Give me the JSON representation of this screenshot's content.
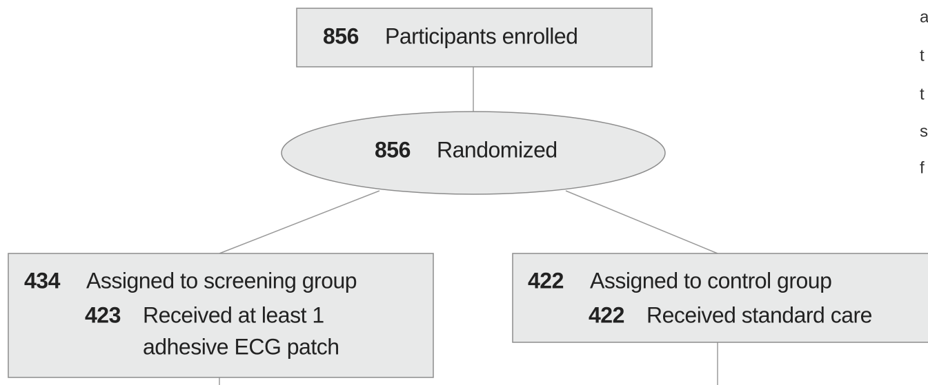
{
  "nodes": [
    {
      "count": 856,
      "label": "Participants enrolled"
    },
    {
      "count": 856,
      "label": "Randomized"
    },
    {
      "count": 434,
      "label": "Assigned to screening group",
      "sub": {
        "count": 423,
        "lines": [
          "Received at least 1",
          "adhesive ECG patch"
        ]
      }
    },
    {
      "count": 422,
      "label": "Assigned to control group",
      "sub": {
        "count": 422,
        "lines": [
          "Received standard care"
        ]
      }
    }
  ],
  "side_text": [
    "a",
    "t",
    "t",
    "s",
    "f"
  ]
}
